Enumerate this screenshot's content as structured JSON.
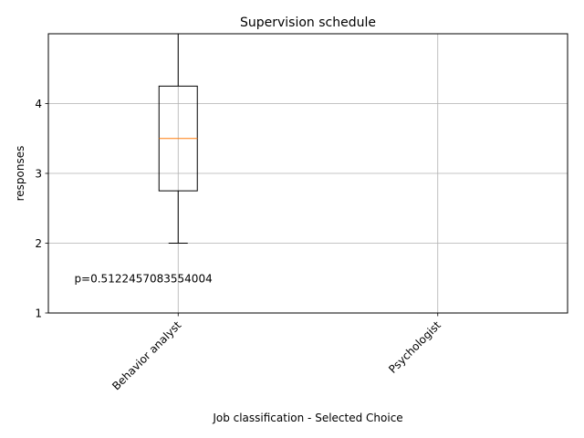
{
  "chart_data": {
    "type": "box",
    "title": "Supervision schedule",
    "xlabel": "Job classification - Selected Choice",
    "ylabel": "responses",
    "ylim": [
      1,
      5
    ],
    "yticks": [
      1,
      2,
      3,
      4
    ],
    "grid": true,
    "categories": [
      "Behavior analyst",
      "Psychologist"
    ],
    "boxes": [
      {
        "name": "Behavior analyst",
        "whisker_low": 2,
        "q1": 2.75,
        "median": 3.5,
        "q3": 4.25,
        "whisker_high": 5
      },
      {
        "name": "Psychologist",
        "whisker_low": 1,
        "q1": 1,
        "median": 1,
        "q3": 1,
        "whisker_high": 1
      }
    ],
    "annotation": {
      "text": "p=0.5122457083554004",
      "x": 0.6,
      "y": 1.5
    },
    "colors": {
      "box": "#000000",
      "median": "#ff7f0e",
      "grid": "#b0b0b0"
    }
  }
}
